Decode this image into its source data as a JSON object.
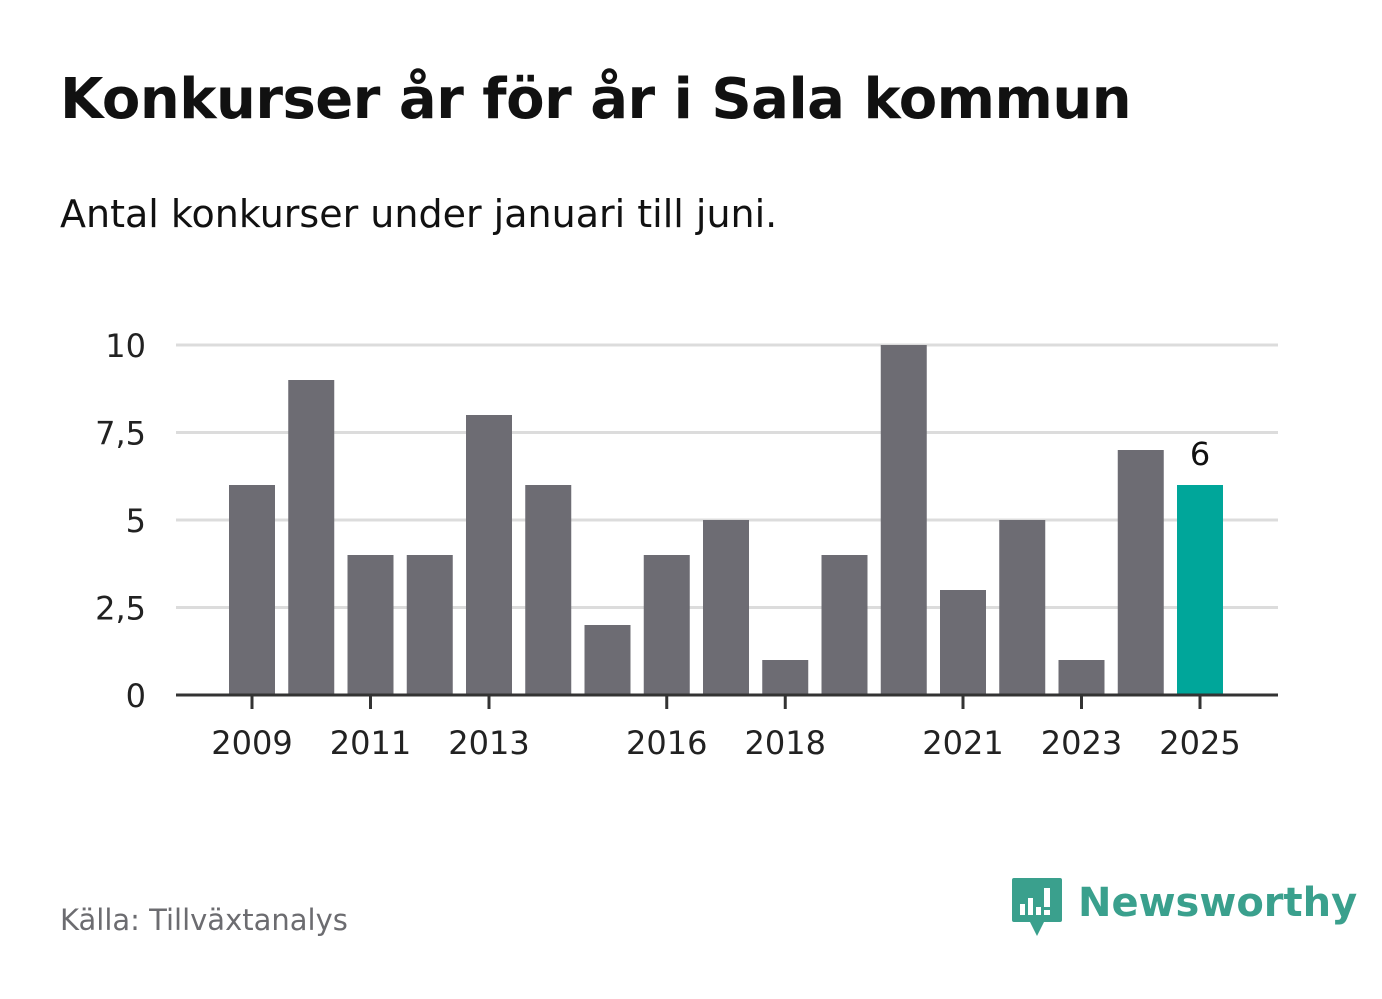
{
  "title": "Konkurser år för år i Sala kommun",
  "subtitle": "Antal konkurser under januari till juni.",
  "source": "Källa: Tillväxtanalys",
  "brand": {
    "name": "Newsworthy",
    "icon": "newsworthy-chart-bubble-icon",
    "color": "#3aa08d"
  },
  "chart_data": {
    "type": "bar",
    "categories": [
      "2009",
      "2010",
      "2011",
      "2012",
      "2013",
      "2014",
      "2015",
      "2016",
      "2017",
      "2018",
      "2019",
      "2020",
      "2021",
      "2022",
      "2023",
      "2024",
      "2025"
    ],
    "values": [
      6,
      9,
      4,
      4,
      8,
      6,
      2,
      4,
      5,
      1,
      4,
      10,
      3,
      5,
      1,
      7,
      6
    ],
    "x_tick_labels": [
      "2009",
      "2011",
      "2013",
      "2016",
      "2018",
      "2021",
      "2023",
      "2025"
    ],
    "y_ticks": [
      0,
      2.5,
      5,
      7.5,
      10
    ],
    "y_tick_labels": [
      "0",
      "2,5",
      "5",
      "7,5",
      "10"
    ],
    "ylim": [
      0,
      10
    ],
    "xlabel": "",
    "ylabel": "",
    "grid": true,
    "highlight": {
      "category": "2025",
      "label": "6",
      "color": "#00a69a"
    },
    "bar_color": "#6d6c73"
  }
}
